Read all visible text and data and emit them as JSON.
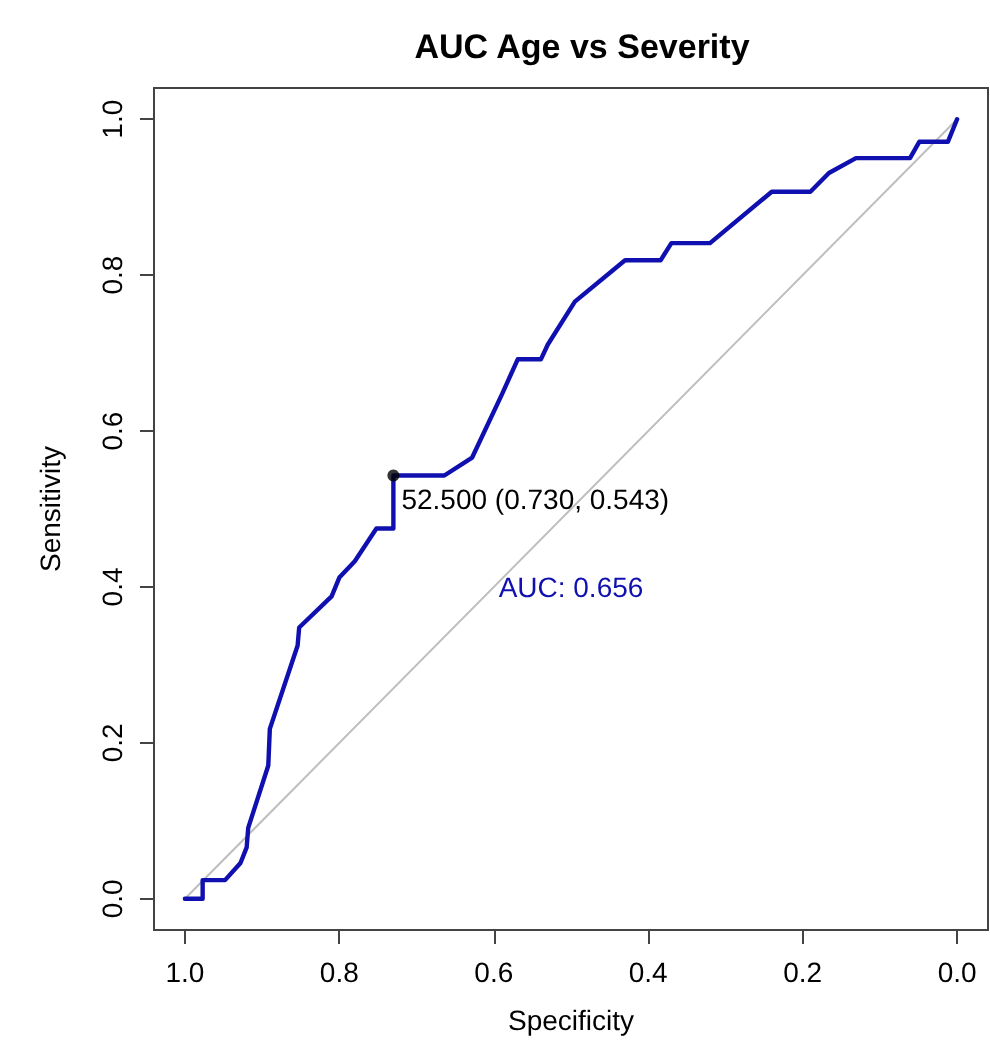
{
  "chart_data": {
    "type": "line",
    "title": "AUC Age vs Severity",
    "xlabel": "Specificity",
    "ylabel": "Sensitivity",
    "xlim": [
      1.04,
      -0.04
    ],
    "ylim": [
      -0.04,
      1.04
    ],
    "xticks": [
      {
        "value": 1,
        "label": "1.0"
      },
      {
        "value": 0.8,
        "label": "0.8"
      },
      {
        "value": 0.6,
        "label": "0.6"
      },
      {
        "value": 0.4,
        "label": "0.4"
      },
      {
        "value": 0.2,
        "label": "0.2"
      },
      {
        "value": 0,
        "label": "0.0"
      }
    ],
    "yticks": [
      {
        "value": 0,
        "label": "0.0"
      },
      {
        "value": 0.2,
        "label": "0.2"
      },
      {
        "value": 0.4,
        "label": "0.4"
      },
      {
        "value": 0.6,
        "label": "0.6"
      },
      {
        "value": 0.8,
        "label": "0.8"
      },
      {
        "value": 1,
        "label": "1.0"
      }
    ],
    "grid": false,
    "marker": "none",
    "line_style": "solid",
    "series": [
      {
        "color": "#bebebe",
        "x": [
          1,
          0
        ],
        "values": [
          0,
          1
        ]
      },
      {
        "color": "#1010b0",
        "x": [
          1,
          0.977,
          0.977,
          0.948,
          0.928,
          0.92,
          0.918,
          0.892,
          0.89,
          0.854,
          0.852,
          0.81,
          0.8,
          0.78,
          0.752,
          0.73,
          0.73,
          0.664,
          0.628,
          0.589,
          0.569,
          0.539,
          0.53,
          0.495,
          0.43,
          0.384,
          0.37,
          0.32,
          0.24,
          0.19,
          0.166,
          0.131,
          0.061,
          0.049,
          0.012,
          0
        ],
        "values": [
          0,
          0,
          0.024,
          0.024,
          0.046,
          0.066,
          0.091,
          0.171,
          0.218,
          0.325,
          0.348,
          0.388,
          0.412,
          0.433,
          0.475,
          0.475,
          0.543,
          0.543,
          0.566,
          0.648,
          0.692,
          0.692,
          0.711,
          0.766,
          0.819,
          0.819,
          0.841,
          0.841,
          0.907,
          0.907,
          0.931,
          0.95,
          0.95,
          0.971,
          0.971,
          1
        ]
      },
      {
        "type": "scatter",
        "marker": "circle",
        "color": "#000000",
        "x": [
          0.73
        ],
        "values": [
          0.543
        ]
      }
    ],
    "annotations": [
      {
        "text": "52.500 (0.730, 0.543)",
        "x": 0.73,
        "y": 0.543
      },
      "AUC: 0.656"
    ]
  }
}
